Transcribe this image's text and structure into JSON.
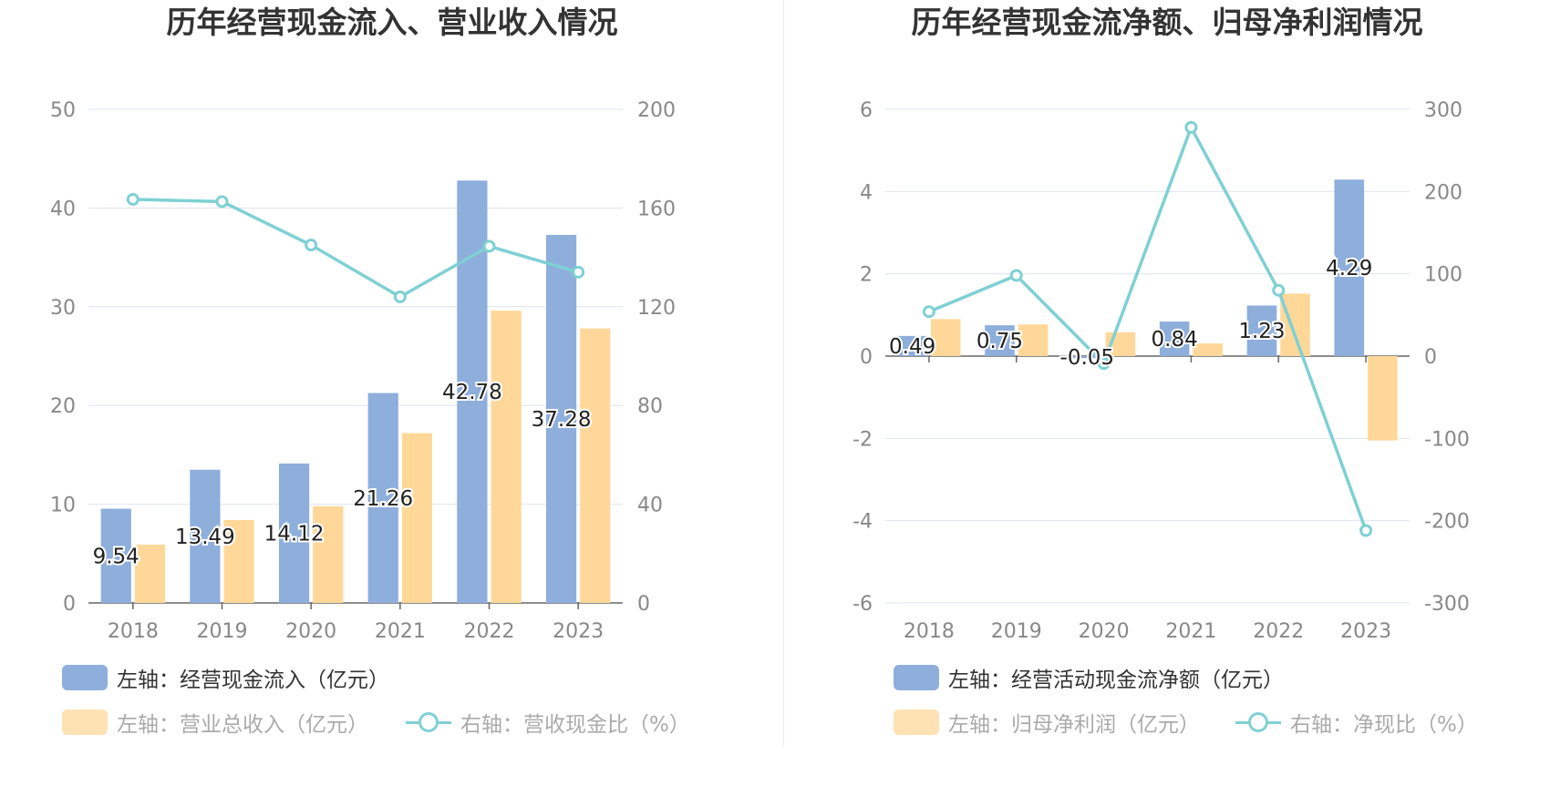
{
  "chart_data": [
    {
      "type": "bar",
      "title": "历年经营现金流入、营业收入情况",
      "categories": [
        "2018",
        "2019",
        "2020",
        "2021",
        "2022",
        "2023"
      ],
      "left_axis": {
        "ylim": [
          0,
          50
        ],
        "ticks": [
          "0",
          "10",
          "20",
          "30",
          "40",
          "50"
        ]
      },
      "right_axis": {
        "ylim": [
          0,
          200
        ],
        "ticks": [
          "0",
          "40",
          "80",
          "120",
          "160",
          "200"
        ]
      },
      "series": [
        {
          "name": "左轴：经营现金流入（亿元）",
          "type": "bar",
          "axis": "left",
          "color": "#8eaedc",
          "values": [
            9.54,
            13.49,
            14.12,
            21.26,
            42.78,
            37.28
          ],
          "labels": [
            "9.54",
            "13.49",
            "14.12",
            "21.26",
            "42.78",
            "37.28"
          ]
        },
        {
          "name": "左轴：营业总收入（亿元）",
          "type": "bar",
          "axis": "left",
          "color": "#ffd899",
          "values": [
            5.9,
            8.4,
            9.8,
            17.2,
            29.6,
            27.8
          ]
        },
        {
          "name": "右轴：营收现金比（%）",
          "type": "line",
          "axis": "right",
          "color": "#7fd0d4",
          "values": [
            163.5,
            162.6,
            145.0,
            124.0,
            144.5,
            134.0
          ]
        }
      ],
      "grid": true,
      "legend_position": "bottom-left"
    },
    {
      "type": "bar",
      "title": "历年经营现金流净额、归母净利润情况",
      "categories": [
        "2018",
        "2019",
        "2020",
        "2021",
        "2022",
        "2023"
      ],
      "left_axis": {
        "ylim": [
          -6,
          6
        ],
        "ticks": [
          "-6",
          "-4",
          "-2",
          "0",
          "2",
          "4",
          "6"
        ]
      },
      "right_axis": {
        "ylim": [
          -300,
          300
        ],
        "ticks": [
          "-300",
          "-200",
          "-100",
          "0",
          "100",
          "200",
          "300"
        ]
      },
      "series": [
        {
          "name": "左轴：经营活动现金流净额（亿元）",
          "type": "bar",
          "axis": "left",
          "color": "#8eaedc",
          "values": [
            0.49,
            0.75,
            -0.05,
            0.84,
            1.23,
            4.29
          ],
          "labels": [
            "0.49",
            "0.75",
            "-0.05",
            "0.84",
            "1.23",
            "4.29"
          ]
        },
        {
          "name": "左轴：归母净利润（亿元）",
          "type": "bar",
          "axis": "left",
          "color": "#ffd899",
          "values": [
            0.9,
            0.77,
            0.58,
            0.31,
            1.52,
            -2.05
          ]
        },
        {
          "name": "右轴：净现比（%）",
          "type": "line",
          "axis": "right",
          "color": "#7fd0d4",
          "values": [
            54,
            98,
            -9,
            278,
            80,
            -212
          ]
        }
      ],
      "grid": true,
      "legend_position": "bottom-left"
    }
  ]
}
